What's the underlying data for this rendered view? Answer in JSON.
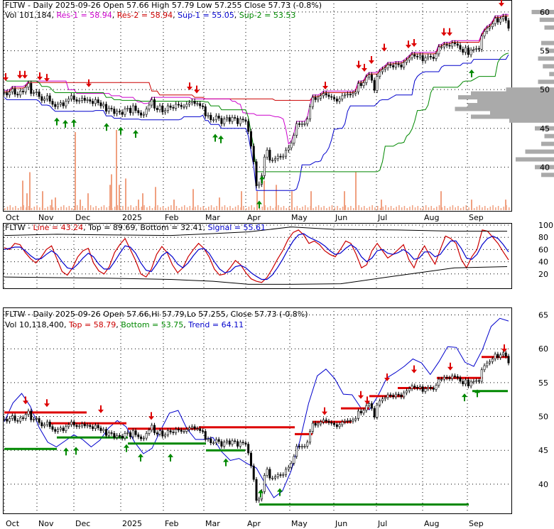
{
  "colors": {
    "resistance": "#cc00cc",
    "support": "#0000cc",
    "sup2": "#008800",
    "res_line": "#cc0000",
    "volume": "#f0a080",
    "up_arrow": "#008800",
    "down_arrow": "#dd0000",
    "stoch_line": "#cc0000",
    "stoch_signal": "#0000cc",
    "trend": "#0000cc",
    "hist": "#aaaaaa"
  },
  "chart_data": [
    {
      "type": "candlestick",
      "header": {
        "ticker": "FLTW",
        "summary": "- Daily 2025-09-26 Open 57.66   High 57.79   Low 57.255   Close 57.73 (-0.8%)",
        "vol": "Vol 101,184",
        "res1": "Res-1 = 58.94",
        "res2": "Res-2 = 58.94",
        "sup1": "Sup-1 = 55.05",
        "sup2": "Sup-2 = 53.53"
      },
      "ylim": [
        35,
        61
      ],
      "yticks": [
        60,
        55,
        50,
        45,
        40
      ],
      "x_labels": [
        "Oct",
        "Nov",
        "Dec",
        "2025",
        "Feb",
        "Mar",
        "Apr",
        "May",
        "Jun",
        "Jul",
        "Aug",
        "Sep"
      ],
      "close": [
        49.6,
        49.3,
        49.7,
        50.1,
        49.4,
        49.3,
        49.8,
        49.7,
        50.3,
        50.8,
        49.5,
        49.6,
        49.7,
        49.1,
        48.6,
        48.8,
        49.2,
        48.5,
        48.1,
        47.8,
        48.1,
        48.3,
        47.9,
        48.5,
        48.8,
        49.2,
        48.7,
        48.5,
        48.6,
        48.9,
        48.6,
        48.7,
        48.5,
        48.2,
        48.7,
        48.3,
        47.9,
        48.1,
        47.2,
        47.6,
        47.5,
        46.9,
        47.2,
        47.1,
        46.8,
        47.5,
        47.6,
        47.0,
        47.9,
        47.3,
        47.0,
        46.7,
        46.8,
        47.5,
        48.0,
        48.7,
        47.6,
        47.4,
        47.9,
        47.1,
        47.3,
        47.9,
        47.7,
        47.6,
        48.1,
        48.0,
        47.8,
        47.8,
        48.1,
        48.3,
        48.5,
        48.2,
        48.2,
        47.9,
        47.8,
        46.6,
        46.7,
        46.1,
        46.1,
        46.6,
        46.3,
        45.6,
        46.2,
        46.4,
        45.9,
        46.4,
        46.3,
        45.6,
        46.2,
        46.1,
        45.9,
        44.6,
        42.7,
        40.7,
        37.6,
        37.8,
        38.9,
        41.3,
        42.2,
        40.9,
        40.9,
        41.1,
        41.4,
        41.3,
        41.4,
        42.2,
        42.5,
        43.1,
        44.1,
        45.6,
        45.5,
        45.6,
        45.6,
        46.2,
        47.8,
        49.0,
        48.7,
        48.9,
        49.2,
        49.5,
        49.3,
        49.1,
        49.0,
        48.8,
        48.5,
        48.8,
        49.2,
        49.3,
        49.4,
        49.3,
        49.5,
        49.7,
        50.8,
        50.5,
        50.9,
        51.6,
        51.9,
        51.2,
        49.9,
        51.7,
        52.3,
        52.6,
        52.8,
        53.2,
        53.1,
        52.9,
        53.3,
        53.2,
        52.9,
        53.5,
        53.8,
        54.1,
        54.5,
        54.3,
        54.2,
        54.4,
        53.7,
        54.1,
        54.3,
        54.2,
        54.0,
        54.6,
        55.5,
        55.5,
        55.8,
        55.7,
        55.6,
        56.0,
        55.9,
        55.7,
        55.2,
        54.8,
        55.4,
        54.5,
        55.1,
        55.2,
        55.3,
        55.2,
        56.9,
        57.5,
        57.9,
        58.1,
        58.5,
        59.2,
        58.7,
        59.1,
        59.4,
        58.9,
        57.9
      ],
      "volume_max": 0.37,
      "volume_spikes": [
        [
          25,
          0.14
        ],
        [
          31,
          0.08
        ],
        [
          35,
          0.18
        ],
        [
          53,
          0.09
        ],
        [
          66,
          0.05
        ],
        [
          71,
          0.06
        ],
        [
          99,
          0.37
        ],
        [
          106,
          0.05
        ],
        [
          117,
          0.08
        ],
        [
          148,
          0.12
        ],
        [
          150,
          0.17
        ],
        [
          157,
          0.38
        ],
        [
          161,
          0.12
        ],
        [
          170,
          0.15
        ],
        [
          188,
          0.05
        ],
        [
          194,
          0.08
        ],
        [
          212,
          0.11
        ],
        [
          238,
          0.05
        ],
        [
          265,
          0.1
        ],
        [
          302,
          0.06
        ],
        [
          333,
          0.09
        ],
        [
          355,
          0.09
        ],
        [
          365,
          0.14
        ],
        [
          382,
          0.12
        ],
        [
          404,
          0.09
        ],
        [
          431,
          0.09
        ],
        [
          478,
          0.09
        ],
        [
          494,
          0.18
        ],
        [
          530,
          0.05
        ],
        [
          614,
          0.09
        ],
        [
          657,
          0.05
        ],
        [
          705,
          0.05
        ]
      ]
    },
    {
      "type": "line",
      "header": {
        "ticker": "FLTW",
        "line": "Line = 43.24",
        "top": "Top = 89.69",
        "bottom": "Bottom = 32.41",
        "signal": "Signal = 55.61"
      },
      "ylim": [
        0,
        100
      ],
      "yticks": [
        100,
        80,
        60,
        40,
        20
      ],
      "series": [
        {
          "name": "Line",
          "values": [
            63,
            60,
            70,
            68,
            55,
            45,
            38,
            47,
            60,
            66,
            45,
            24,
            18,
            30,
            48,
            58,
            62,
            38,
            25,
            20,
            32,
            55,
            68,
            78,
            60,
            42,
            20,
            15,
            28,
            52,
            65,
            55,
            35,
            22,
            30,
            48,
            60,
            70,
            62,
            48,
            28,
            18,
            20,
            30,
            42,
            35,
            22,
            12,
            8,
            6,
            14,
            28,
            44,
            58,
            76,
            88,
            92,
            84,
            70,
            74,
            68,
            58,
            52,
            48,
            60,
            74,
            70,
            52,
            30,
            35,
            58,
            70,
            58,
            46,
            52,
            60,
            68,
            44,
            30,
            52,
            66,
            50,
            36,
            60,
            82,
            78,
            70,
            44,
            30,
            48,
            60,
            92,
            90,
            80,
            70,
            56,
            43
          ]
        },
        {
          "name": "Signal",
          "values": [
            60,
            62,
            64,
            64,
            58,
            50,
            44,
            45,
            52,
            58,
            52,
            40,
            30,
            28,
            36,
            46,
            54,
            48,
            36,
            28,
            28,
            40,
            54,
            66,
            64,
            54,
            38,
            26,
            24,
            36,
            50,
            56,
            48,
            36,
            30,
            38,
            50,
            60,
            62,
            54,
            40,
            28,
            22,
            24,
            32,
            34,
            30,
            22,
            16,
            11,
            11,
            18,
            30,
            44,
            60,
            74,
            84,
            86,
            80,
            76,
            72,
            66,
            58,
            52,
            54,
            62,
            68,
            62,
            48,
            40,
            46,
            58,
            60,
            54,
            52,
            55,
            60,
            54,
            44,
            46,
            56,
            56,
            48,
            52,
            64,
            74,
            74,
            62,
            46,
            44,
            52,
            68,
            78,
            82,
            78,
            68,
            56
          ]
        }
      ]
    },
    {
      "type": "candlestick",
      "header": {
        "ticker": "FLTW",
        "summary": "- Daily 2025-09-26 Open 57.66,Hi 57.79,Lo 57.255, Close 57.73 (-0.8%)",
        "vol": "Vol 10,118,400",
        "top": "Top = 58.79",
        "bottom": "Bottom = 53.75",
        "trend": "Trend = 64.11"
      },
      "ylim": [
        36,
        66
      ],
      "yticks": [
        65,
        60,
        55,
        50,
        45,
        40
      ],
      "x_labels": [
        "Oct",
        "Nov",
        "Dec",
        "2025",
        "Feb",
        "Mar",
        "Apr",
        "May",
        "Jun",
        "Jul",
        "Aug",
        "Sep"
      ],
      "trend": [
        49.2,
        52.0,
        53.4,
        51.5,
        48.4,
        46.2,
        45.5,
        46.4,
        47.3,
        46.6,
        45.5,
        46.5,
        48.3,
        49.4,
        48.5,
        46.2,
        44.5,
        45.3,
        48.0,
        50.5,
        50.9,
        48.2,
        46.6,
        46.6,
        46.9,
        44.8,
        43.5,
        43.8,
        43.0,
        42.4,
        40.1,
        38.0,
        39.0,
        42.0,
        46.4,
        51.9,
        56.0,
        57.0,
        55.6,
        53.3,
        53.2,
        51.3,
        51.0,
        53.1,
        55.7,
        56.5,
        57.4,
        58.5,
        57.9,
        56.2,
        58.1,
        60.3,
        60.2,
        58.0,
        57.4,
        59.9,
        63.3,
        64.5,
        64.1
      ]
    }
  ]
}
